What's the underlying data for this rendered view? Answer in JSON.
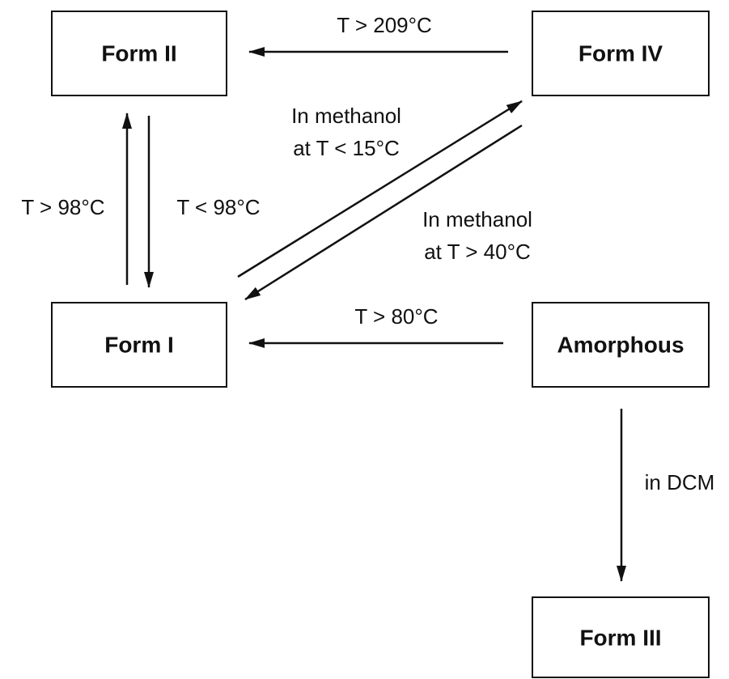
{
  "nodes": [
    {
      "label": "Form II"
    },
    {
      "label": "Form IV"
    },
    {
      "label": "Form I"
    },
    {
      "label": "Amorphous"
    },
    {
      "label": "Form III"
    }
  ],
  "edges": [
    {
      "label": [
        "T > 209°C"
      ]
    },
    {
      "label": [
        "T > 98°C"
      ]
    },
    {
      "label": [
        "T < 98°C"
      ]
    },
    {
      "label": [
        "In methanol",
        "at T < 15°C"
      ]
    },
    {
      "label": [
        "In methanol",
        "at T > 40°C"
      ]
    },
    {
      "label": [
        "T > 80°C"
      ]
    },
    {
      "label": [
        "in DCM"
      ]
    }
  ]
}
